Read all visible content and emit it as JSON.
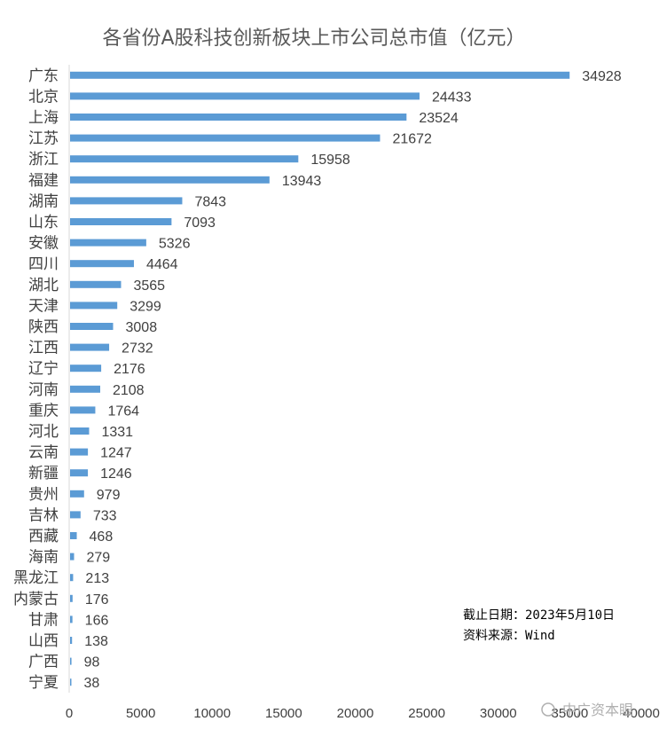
{
  "chart_data": {
    "type": "bar",
    "orientation": "horizontal",
    "title": "各省份A股科技创新板块上市公司总市值（亿元）",
    "categories": [
      "广东",
      "北京",
      "上海",
      "江苏",
      "浙江",
      "福建",
      "湖南",
      "山东",
      "安徽",
      "四川",
      "湖北",
      "天津",
      "陕西",
      "江西",
      "辽宁",
      "河南",
      "重庆",
      "河北",
      "云南",
      "新疆",
      "贵州",
      "吉林",
      "西藏",
      "海南",
      "黑龙江",
      "内蒙古",
      "甘肃",
      "山西",
      "广西",
      "宁夏"
    ],
    "values": [
      34928,
      24433,
      23524,
      21672,
      15958,
      13943,
      7843,
      7093,
      5326,
      4464,
      3565,
      3299,
      3008,
      2732,
      2176,
      2108,
      1764,
      1331,
      1247,
      1246,
      979,
      733,
      468,
      279,
      213,
      176,
      166,
      138,
      98,
      38
    ],
    "data_labels": [
      "34928",
      "24433",
      "23524",
      "21672",
      "15958",
      "13943",
      "7843",
      "7093",
      "5326",
      "4464",
      "3565",
      "3299",
      "3008",
      "2732",
      "2176",
      "2108",
      "1764",
      "1331",
      "1247",
      "1246",
      "979",
      "733",
      "468",
      "279",
      "213",
      "176",
      "166",
      "138",
      "98",
      "38"
    ],
    "xlim": [
      0,
      40000
    ],
    "ticks": [
      "0",
      "5000",
      "10000",
      "15000",
      "20000",
      "25000",
      "30000",
      "35000",
      "40000"
    ],
    "tick_values": [
      0,
      5000,
      10000,
      15000,
      20000,
      25000,
      30000,
      35000,
      40000
    ],
    "bar_color": "#5b9bd5",
    "grid": false,
    "annotations": [
      "截止日期：2023年5月10日",
      "资料来源：Wind"
    ]
  },
  "watermark": "中广资本眼"
}
